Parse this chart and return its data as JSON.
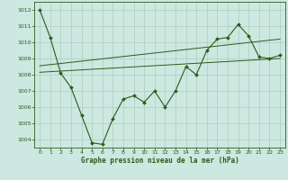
{
  "title": "Graphe pression niveau de la mer (hPa)",
  "bg_color": "#cde8e0",
  "grid_color": "#b0ccbf",
  "line_color": "#2d5a1b",
  "xlim": [
    -0.5,
    23.5
  ],
  "ylim": [
    1003.5,
    1012.5
  ],
  "yticks": [
    1004,
    1005,
    1006,
    1007,
    1008,
    1009,
    1010,
    1011,
    1012
  ],
  "xticks": [
    0,
    1,
    2,
    3,
    4,
    5,
    6,
    7,
    8,
    9,
    10,
    11,
    12,
    13,
    14,
    15,
    16,
    17,
    18,
    19,
    20,
    21,
    22,
    23
  ],
  "main_x": [
    0,
    1,
    2,
    3,
    4,
    5,
    6,
    7,
    8,
    9,
    10,
    11,
    12,
    13,
    14,
    15,
    16,
    17,
    18,
    19,
    20,
    21,
    22,
    23
  ],
  "main_y": [
    1012.0,
    1010.3,
    1008.1,
    1007.2,
    1005.5,
    1003.8,
    1003.7,
    1005.3,
    1006.5,
    1006.7,
    1006.3,
    1007.0,
    1006.0,
    1007.0,
    1008.5,
    1008.0,
    1009.5,
    1010.2,
    1010.3,
    1011.1,
    1010.4,
    1009.1,
    1009.0,
    1009.2
  ],
  "trend1_x": [
    0,
    23
  ],
  "trend1_y": [
    1008.15,
    1009.0
  ],
  "trend2_x": [
    0,
    23
  ],
  "trend2_y": [
    1008.55,
    1010.2
  ]
}
